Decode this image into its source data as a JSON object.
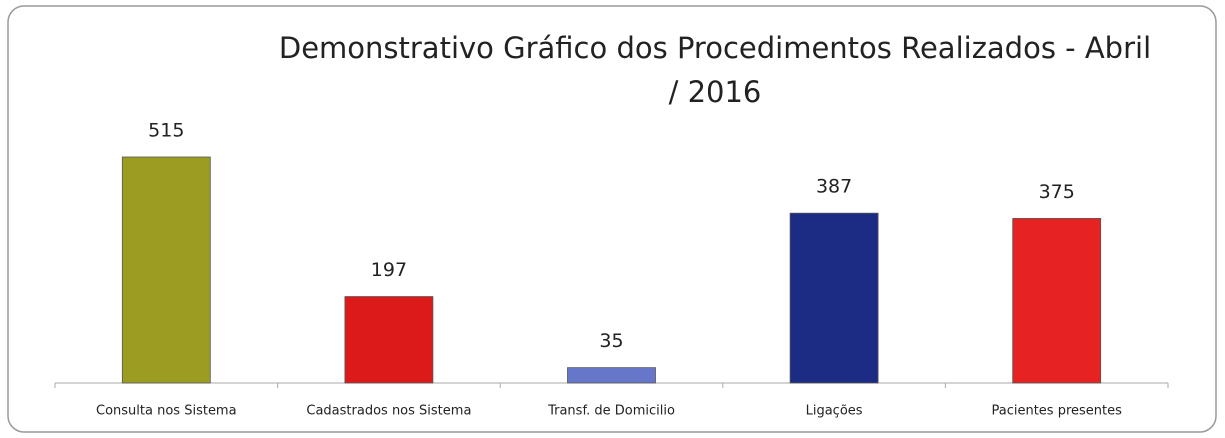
{
  "chart_data": {
    "type": "bar",
    "title": "Demonstrativo Gráfico dos Procedimentos Realizados - Abril / 2016",
    "categories": [
      "Consulta nos Sistema",
      "Cadastrados nos Sistema",
      "Transf. de Domicilio",
      "Ligações",
      "Pacientes presentes"
    ],
    "values": [
      515,
      197,
      35,
      387,
      375
    ],
    "colors": [
      "#9c9c22",
      "#dd1a1a",
      "#6676c8",
      "#1c2c84",
      "#e62222"
    ]
  }
}
